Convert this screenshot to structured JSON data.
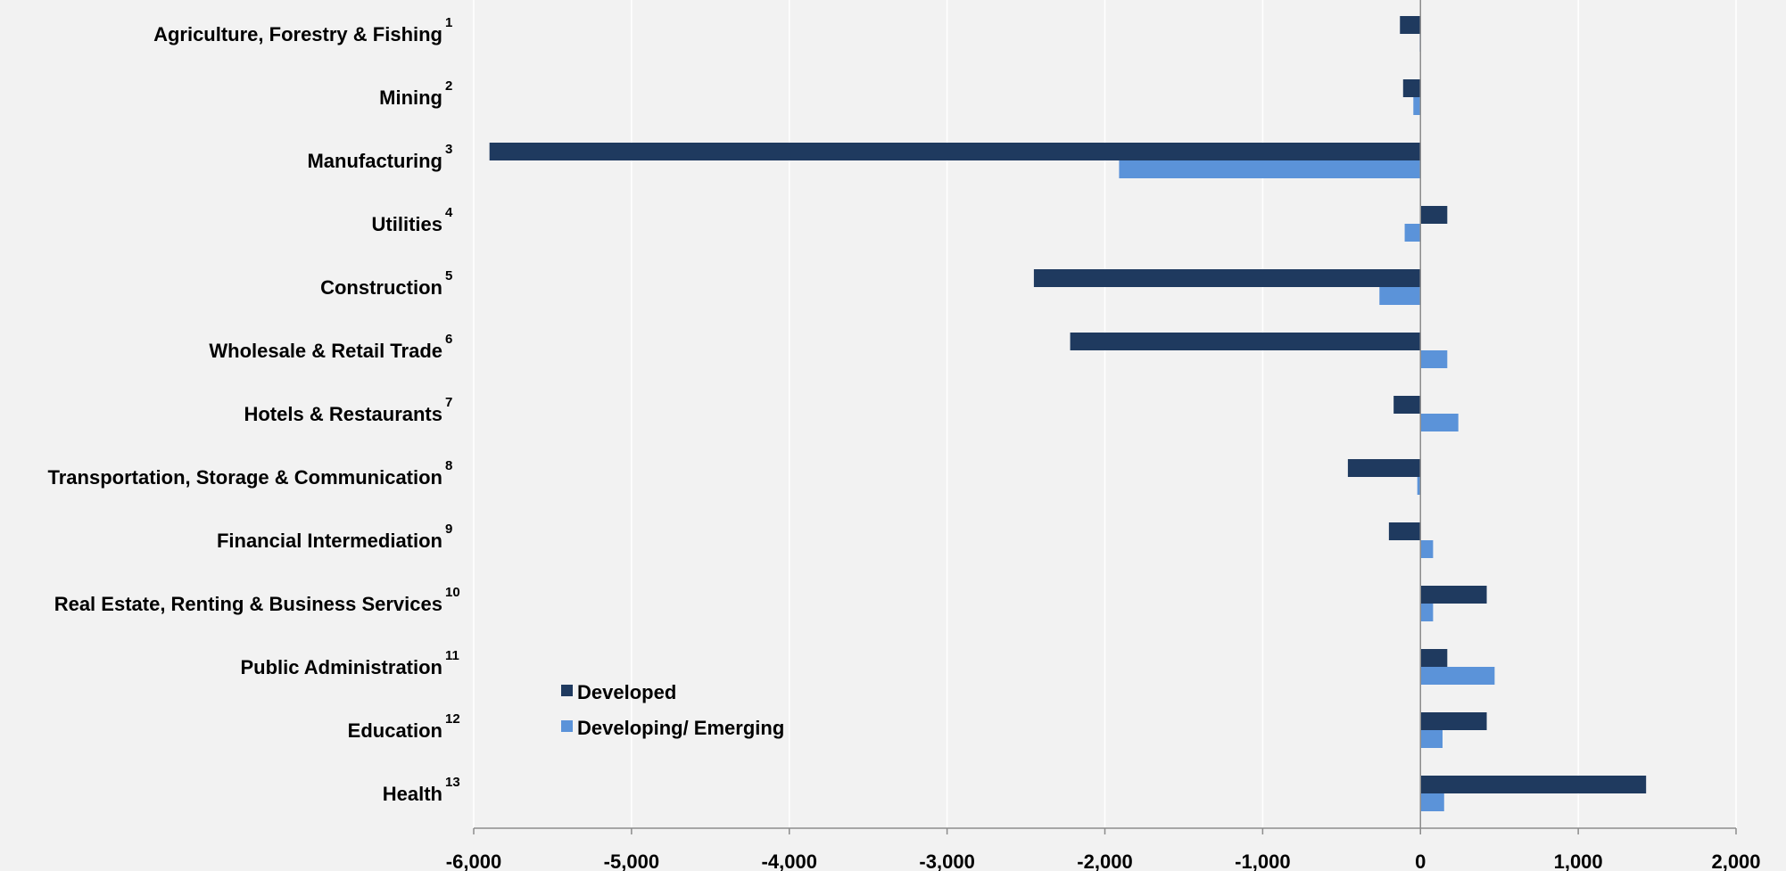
{
  "chart_data": {
    "type": "bar",
    "orientation": "horizontal",
    "title": "",
    "xlabel": "",
    "ylabel": "",
    "xlim": [
      -6000,
      2000
    ],
    "x_ticks": [
      -6000,
      -5000,
      -4000,
      -3000,
      -2000,
      -1000,
      0,
      1000,
      2000
    ],
    "x_tick_labels": [
      "-6,000",
      "-5,000",
      "-4,000",
      "-3,000",
      "-2,000",
      "-1,000",
      "0",
      "1,000",
      "2,000"
    ],
    "grid": "vertical",
    "legend_position": "bottom-left",
    "categories": [
      {
        "label": "Agriculture, Forestry & Fishing",
        "footnote": "1"
      },
      {
        "label": "Mining",
        "footnote": "2"
      },
      {
        "label": "Manufacturing",
        "footnote": "3"
      },
      {
        "label": "Utilities",
        "footnote": "4"
      },
      {
        "label": "Construction",
        "footnote": "5"
      },
      {
        "label": "Wholesale & Retail Trade",
        "footnote": "6"
      },
      {
        "label": "Hotels & Restaurants",
        "footnote": "7"
      },
      {
        "label": "Transportation, Storage & Communication",
        "footnote": "8"
      },
      {
        "label": "Financial Intermediation",
        "footnote": "9"
      },
      {
        "label": "Real Estate, Renting & Business Services",
        "footnote": "10"
      },
      {
        "label": "Public Administration",
        "footnote": "11"
      },
      {
        "label": "Education",
        "footnote": "12"
      },
      {
        "label": "Health",
        "footnote": "13"
      }
    ],
    "series": [
      {
        "name": "Developed",
        "color": "#1f3a5f",
        "values": [
          -130,
          -110,
          -5900,
          170,
          -2450,
          -2220,
          -170,
          -460,
          -200,
          420,
          170,
          420,
          1430
        ]
      },
      {
        "name": "Developing/ Emerging",
        "color": "#5b93d9",
        "values": [
          -5,
          -45,
          -1910,
          -100,
          -260,
          170,
          240,
          -20,
          80,
          80,
          470,
          140,
          150
        ]
      }
    ]
  }
}
